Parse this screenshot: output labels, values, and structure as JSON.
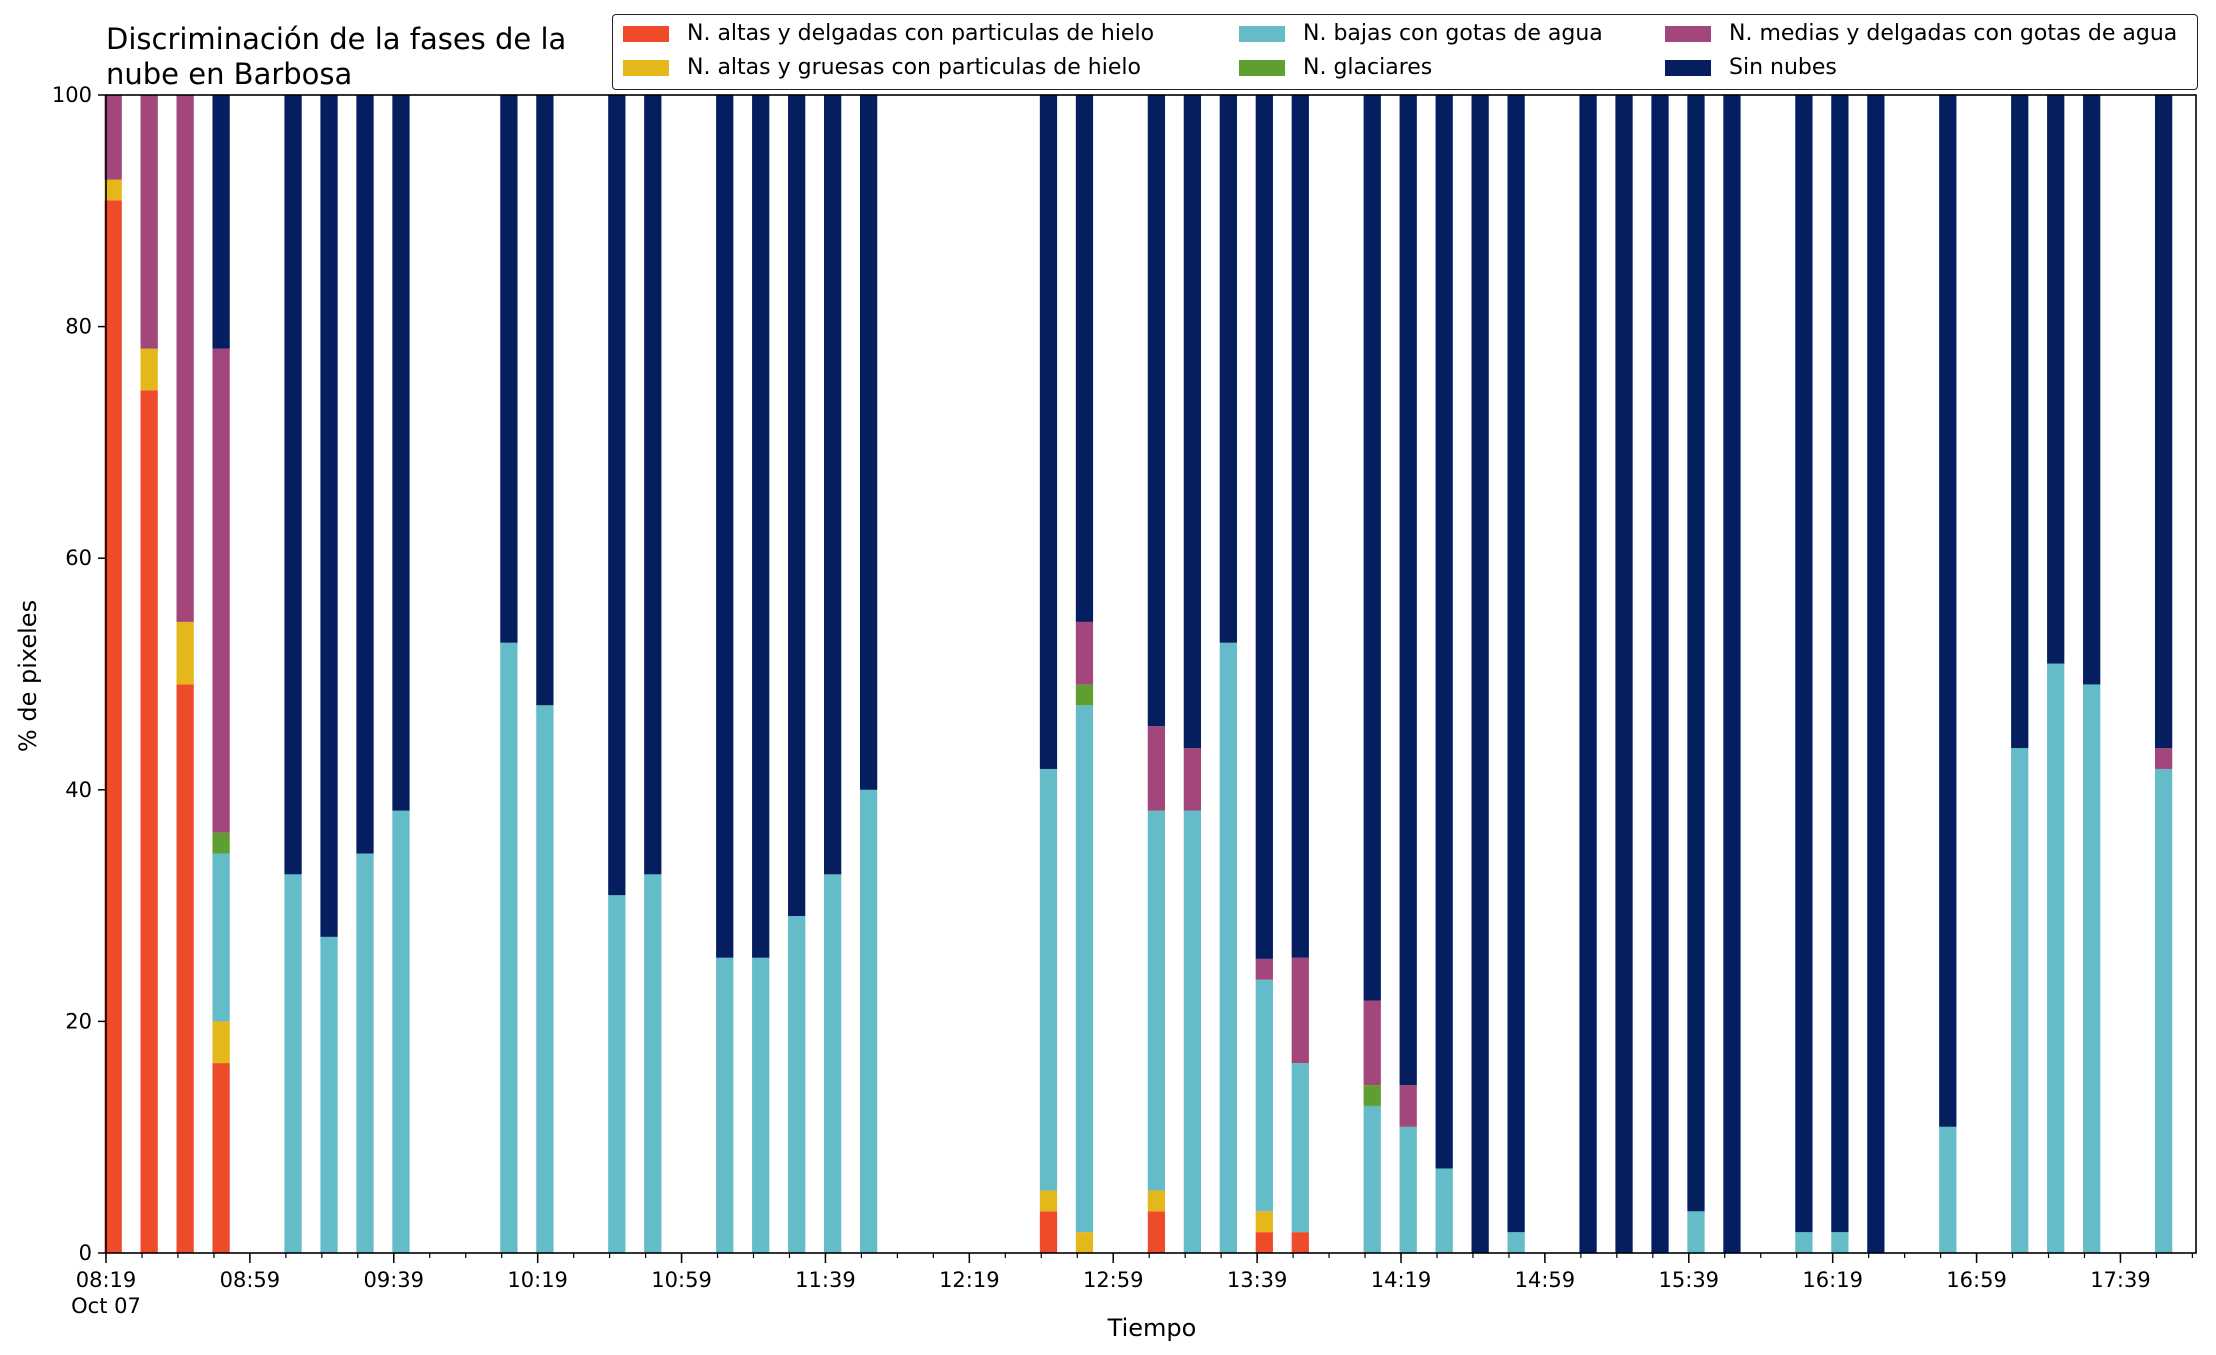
{
  "chart_data": {
    "type": "bar",
    "stacked": true,
    "title": "Discriminación de la fases de la\nnube en Barbosa",
    "xlabel": "Tiempo",
    "ylabel": "% de pixeles",
    "ylim": [
      0,
      100
    ],
    "yticks": [
      "0",
      "20",
      "40",
      "60",
      "80",
      "100"
    ],
    "x_start_minute": 499,
    "x_end_minute": 1080,
    "bar_width_minutes": 5,
    "major_ticks": [
      {
        "minute": 499,
        "label": "08:19",
        "sublabel": "Oct 07"
      },
      {
        "minute": 539,
        "label": "08:59",
        "sublabel": ""
      },
      {
        "minute": 579,
        "label": "09:39",
        "sublabel": ""
      },
      {
        "minute": 619,
        "label": "10:19",
        "sublabel": ""
      },
      {
        "minute": 659,
        "label": "10:59",
        "sublabel": ""
      },
      {
        "minute": 699,
        "label": "11:39",
        "sublabel": ""
      },
      {
        "minute": 739,
        "label": "12:19",
        "sublabel": ""
      },
      {
        "minute": 779,
        "label": "12:59",
        "sublabel": ""
      },
      {
        "minute": 819,
        "label": "13:39",
        "sublabel": ""
      },
      {
        "minute": 859,
        "label": "14:19",
        "sublabel": ""
      },
      {
        "minute": 899,
        "label": "14:59",
        "sublabel": ""
      },
      {
        "minute": 939,
        "label": "15:39",
        "sublabel": ""
      },
      {
        "minute": 979,
        "label": "16:19",
        "sublabel": ""
      },
      {
        "minute": 1019,
        "label": "16:59",
        "sublabel": ""
      },
      {
        "minute": 1059,
        "label": "17:39",
        "sublabel": ""
      }
    ],
    "minor_tick_step": 10,
    "legend_position": "top-right",
    "series": [
      {
        "name": "N. altas y delgadas con particulas de hielo",
        "color": "#ee4b2b"
      },
      {
        "name": "N. altas y gruesas con particulas de hielo",
        "color": "#e4b71a"
      },
      {
        "name": "N. bajas con gotas de agua",
        "color": "#63bcc8"
      },
      {
        "name": "N. glaciares",
        "color": "#5f9f2f"
      },
      {
        "name": "N. medias y delgadas con gotas de agua",
        "color": "#a2467c"
      },
      {
        "name": "Sin nubes",
        "color": "#041e5f"
      }
    ],
    "bars": [
      {
        "minute": 501,
        "values": [
          90.9,
          1.8,
          0,
          0,
          7.3,
          0
        ]
      },
      {
        "minute": 511,
        "values": [
          74.5,
          3.6,
          0,
          0,
          21.9,
          0
        ]
      },
      {
        "minute": 521,
        "values": [
          49.1,
          5.4,
          0,
          0,
          45.5,
          0
        ]
      },
      {
        "minute": 531,
        "values": [
          16.4,
          3.6,
          14.5,
          1.8,
          41.8,
          21.9
        ]
      },
      {
        "minute": 551,
        "values": [
          0,
          0,
          32.7,
          0,
          0,
          67.3
        ]
      },
      {
        "minute": 561,
        "values": [
          0,
          0,
          27.3,
          0,
          0,
          72.7
        ]
      },
      {
        "minute": 571,
        "values": [
          0,
          0,
          34.5,
          0,
          0,
          65.5
        ]
      },
      {
        "minute": 581,
        "values": [
          0,
          0,
          38.2,
          0,
          0,
          61.8
        ]
      },
      {
        "minute": 611,
        "values": [
          0,
          0,
          52.7,
          0,
          0,
          47.3
        ]
      },
      {
        "minute": 621,
        "values": [
          0,
          0,
          47.3,
          0,
          0,
          52.7
        ]
      },
      {
        "minute": 641,
        "values": [
          0,
          0,
          30.9,
          0,
          0,
          69.1
        ]
      },
      {
        "minute": 651,
        "values": [
          0,
          0,
          32.7,
          0,
          0,
          67.3
        ]
      },
      {
        "minute": 671,
        "values": [
          0,
          0,
          25.5,
          0,
          0,
          74.5
        ]
      },
      {
        "minute": 681,
        "values": [
          0,
          0,
          25.5,
          0,
          0,
          74.5
        ]
      },
      {
        "minute": 691,
        "values": [
          0,
          0,
          29.1,
          0,
          0,
          70.9
        ]
      },
      {
        "minute": 701,
        "values": [
          0,
          0,
          32.7,
          0,
          0,
          67.3
        ]
      },
      {
        "minute": 711,
        "values": [
          0,
          0,
          40.0,
          0,
          0,
          60.0
        ]
      },
      {
        "minute": 761,
        "values": [
          3.6,
          1.8,
          36.4,
          0,
          0,
          58.2
        ]
      },
      {
        "minute": 771,
        "values": [
          0,
          1.8,
          45.5,
          1.8,
          5.4,
          45.5
        ]
      },
      {
        "minute": 791,
        "values": [
          3.6,
          1.8,
          32.8,
          0,
          7.3,
          54.5
        ]
      },
      {
        "minute": 801,
        "values": [
          0,
          0,
          38.2,
          0,
          5.4,
          56.4
        ]
      },
      {
        "minute": 811,
        "values": [
          0,
          0,
          52.7,
          0,
          0,
          47.3
        ]
      },
      {
        "minute": 821,
        "values": [
          1.8,
          1.8,
          20.0,
          0,
          1.8,
          74.6
        ]
      },
      {
        "minute": 831,
        "values": [
          1.8,
          0,
          14.6,
          0,
          9.1,
          74.5
        ]
      },
      {
        "minute": 851,
        "values": [
          0,
          0,
          12.7,
          1.8,
          7.3,
          78.2
        ]
      },
      {
        "minute": 861,
        "values": [
          0,
          0,
          10.9,
          0,
          3.6,
          85.5
        ]
      },
      {
        "minute": 871,
        "values": [
          0,
          0,
          7.3,
          0,
          0,
          92.7
        ]
      },
      {
        "minute": 881,
        "values": [
          0,
          0,
          0,
          0,
          0,
          100
        ]
      },
      {
        "minute": 891,
        "values": [
          0,
          0,
          1.8,
          0,
          0,
          98.2
        ]
      },
      {
        "minute": 911,
        "values": [
          0,
          0,
          0,
          0,
          0,
          100
        ]
      },
      {
        "minute": 921,
        "values": [
          0,
          0,
          0,
          0,
          0,
          100
        ]
      },
      {
        "minute": 931,
        "values": [
          0,
          0,
          0,
          0,
          0,
          100
        ]
      },
      {
        "minute": 941,
        "values": [
          0,
          0,
          3.6,
          0,
          0,
          96.4
        ]
      },
      {
        "minute": 951,
        "values": [
          0,
          0,
          0,
          0,
          0,
          100
        ]
      },
      {
        "minute": 971,
        "values": [
          0,
          0,
          1.8,
          0,
          0,
          98.2
        ]
      },
      {
        "minute": 981,
        "values": [
          0,
          0,
          1.8,
          0,
          0,
          98.2
        ]
      },
      {
        "minute": 991,
        "values": [
          0,
          0,
          0,
          0,
          0,
          100
        ]
      },
      {
        "minute": 1011,
        "values": [
          0,
          0,
          10.9,
          0,
          0,
          89.1
        ]
      },
      {
        "minute": 1031,
        "values": [
          0,
          0,
          43.6,
          0,
          0,
          56.4
        ]
      },
      {
        "minute": 1041,
        "values": [
          0,
          0,
          50.9,
          0,
          0,
          49.1
        ]
      },
      {
        "minute": 1051,
        "values": [
          0,
          0,
          49.1,
          0,
          0,
          50.9
        ]
      },
      {
        "minute": 1071,
        "values": [
          0,
          0,
          41.8,
          0,
          1.8,
          56.4
        ]
      }
    ]
  }
}
